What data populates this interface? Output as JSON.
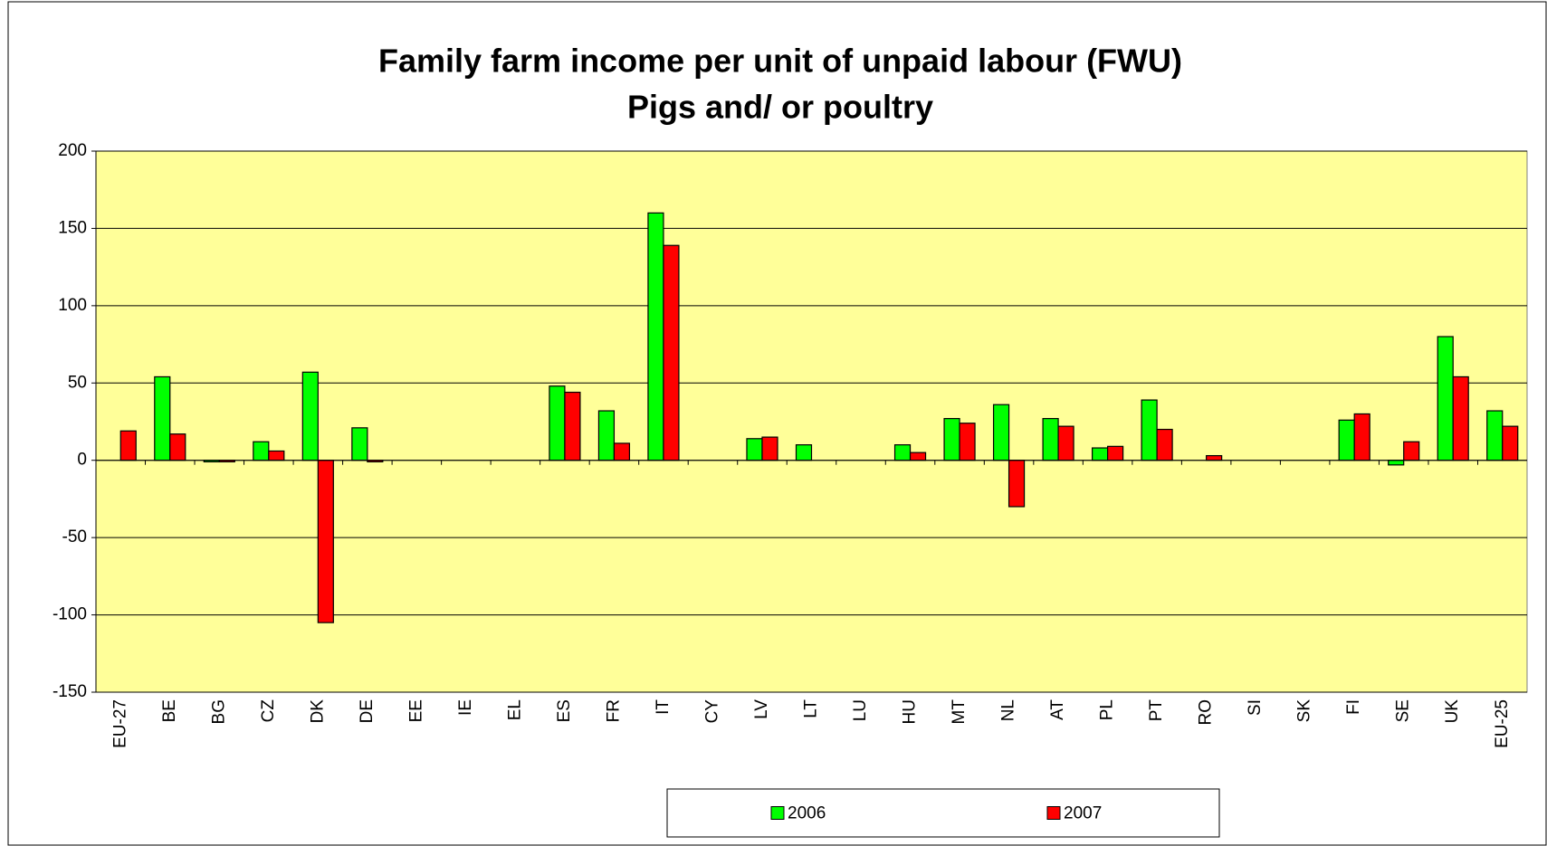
{
  "chart_data": {
    "type": "bar",
    "title": "Family farm income per unit of unpaid labour (FWU)",
    "subtitle": "Pigs and/ or poultry",
    "categories": [
      "EU-27",
      "BE",
      "BG",
      "CZ",
      "DK",
      "DE",
      "EE",
      "IE",
      "EL",
      "ES",
      "FR",
      "IT",
      "CY",
      "LV",
      "LT",
      "LU",
      "HU",
      "MT",
      "NL",
      "AT",
      "PL",
      "PT",
      "RO",
      "SI",
      "SK",
      "FI",
      "SE",
      "UK",
      "EU-25"
    ],
    "series": [
      {
        "name": "2006",
        "color": "#00ff00",
        "values": [
          null,
          54,
          -1,
          12,
          57,
          21,
          null,
          null,
          null,
          48,
          32,
          160,
          null,
          14,
          10,
          null,
          10,
          27,
          36,
          27,
          8,
          39,
          null,
          null,
          null,
          26,
          -3,
          80,
          32
        ]
      },
      {
        "name": "2007",
        "color": "#ff0000",
        "values": [
          19,
          17,
          -1,
          6,
          -105,
          -1,
          null,
          null,
          null,
          44,
          11,
          139,
          null,
          15,
          null,
          null,
          5,
          24,
          -30,
          22,
          9,
          20,
          3,
          null,
          null,
          30,
          12,
          54,
          22
        ]
      }
    ],
    "ylim": [
      -150,
      200
    ],
    "yticks": [
      -150,
      -100,
      -50,
      0,
      50,
      100,
      150,
      200
    ],
    "grid": true,
    "legend": "bottom",
    "background": "#ffff99"
  }
}
